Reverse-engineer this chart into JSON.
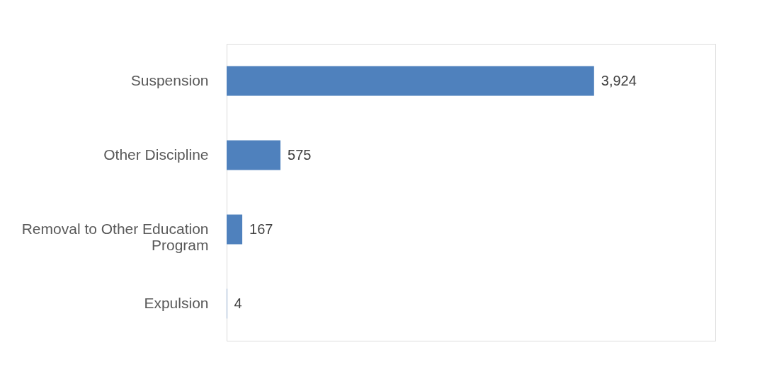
{
  "chart_data": {
    "type": "bar",
    "orientation": "horizontal",
    "categories": [
      "Suspension",
      "Other Discipline",
      "Removal to Other Education Program",
      "Expulsion"
    ],
    "values": [
      3924,
      575,
      167,
      4
    ],
    "value_labels": [
      "3,924",
      "575",
      "167",
      "4"
    ],
    "color": "#4f81bd",
    "grid": false
  }
}
